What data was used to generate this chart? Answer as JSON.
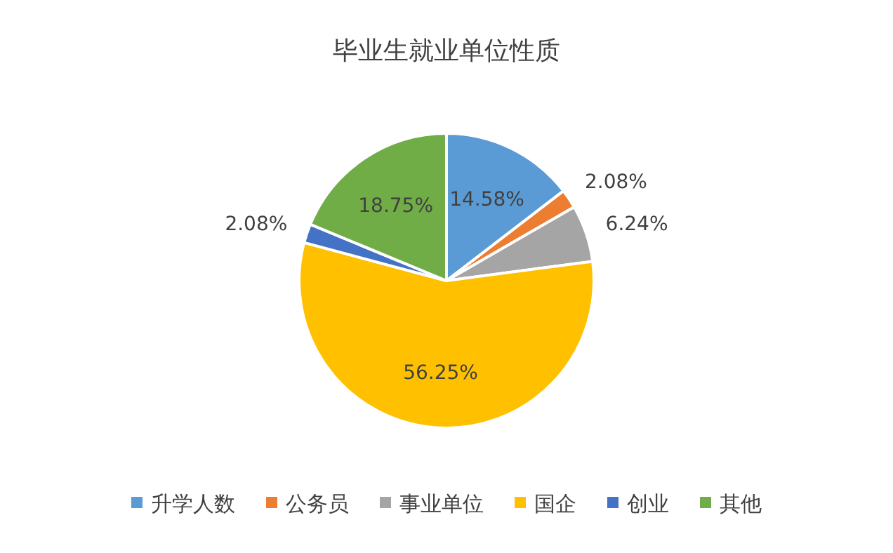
{
  "chart_data": {
    "type": "pie",
    "title": "毕业生就业单位性质",
    "categories": [
      "升学人数",
      "公务员",
      "事业单位",
      "国企",
      "创业",
      "其他"
    ],
    "values": [
      14.58,
      2.08,
      6.24,
      56.25,
      2.08,
      18.75
    ],
    "value_labels": [
      "14.58%",
      "2.08%",
      "6.24%",
      "56.25%",
      "2.08%",
      "18.75%"
    ],
    "colors": [
      "#5b9bd5",
      "#ed7d31",
      "#a5a5a5",
      "#ffc000",
      "#4472c4",
      "#70ad47"
    ],
    "legend": "bottom"
  }
}
